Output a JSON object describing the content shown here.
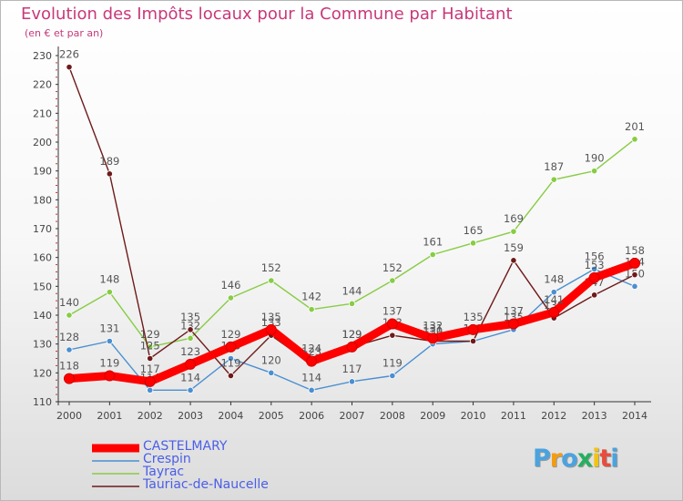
{
  "header": {
    "title": "Evolution des Impôts locaux pour la Commune par Habitant",
    "subtitle": "(en € et par an)"
  },
  "chart_data": {
    "type": "line",
    "title": "Evolution des Impôts locaux pour la Commune par Habitant",
    "subtitle": "(en € et par an)",
    "xlabel": "",
    "ylabel": "",
    "x": [
      "2000",
      "2001",
      "2002",
      "2003",
      "2004",
      "2005",
      "2006",
      "2007",
      "2008",
      "2009",
      "2010",
      "2011",
      "2012",
      "2013",
      "2014"
    ],
    "ylim": [
      110,
      230
    ],
    "yticks": [
      110,
      120,
      130,
      140,
      150,
      160,
      170,
      180,
      190,
      200,
      210,
      220,
      230
    ],
    "grid": false,
    "legend_position": "bottom-left",
    "series": [
      {
        "name": "Tayrac",
        "color": "#88cc44",
        "values": [
          140,
          148,
          129,
          132,
          146,
          152,
          142,
          144,
          152,
          161,
          165,
          169,
          187,
          190,
          201
        ]
      },
      {
        "name": "Crespin",
        "color": "#4a8fd0",
        "values": [
          128,
          131,
          114,
          114,
          125,
          120,
          114,
          117,
          119,
          130,
          131,
          135,
          148,
          156,
          150
        ]
      },
      {
        "name": "Tauriac-de-Naucelle",
        "color": "#6e1a1a",
        "values": [
          226,
          189,
          125,
          135,
          119,
          133,
          123,
          129,
          133,
          131,
          131,
          159,
          139,
          147,
          154
        ]
      },
      {
        "name": "CASTELMARY",
        "color": "#ff0000",
        "values": [
          118,
          119,
          117,
          123,
          129,
          135,
          124,
          129,
          137,
          132,
          135,
          137,
          141,
          153,
          158
        ]
      }
    ],
    "legend": [
      {
        "name": "CASTELMARY",
        "color": "#ff0000"
      },
      {
        "name": "Crespin",
        "color": "#4a8fd0"
      },
      {
        "name": "Tayrac",
        "color": "#88cc44"
      },
      {
        "name": "Tauriac-de-Naucelle",
        "color": "#6e1a1a"
      }
    ]
  },
  "logo": {
    "letters": [
      "P",
      "r",
      "o",
      "x",
      "i",
      "t",
      "i"
    ],
    "colors": [
      "#4aa3df",
      "#f39c12",
      "#4aa3df",
      "#27ae60",
      "#f1c40f",
      "#e74c3c",
      "#4aa3df"
    ]
  }
}
